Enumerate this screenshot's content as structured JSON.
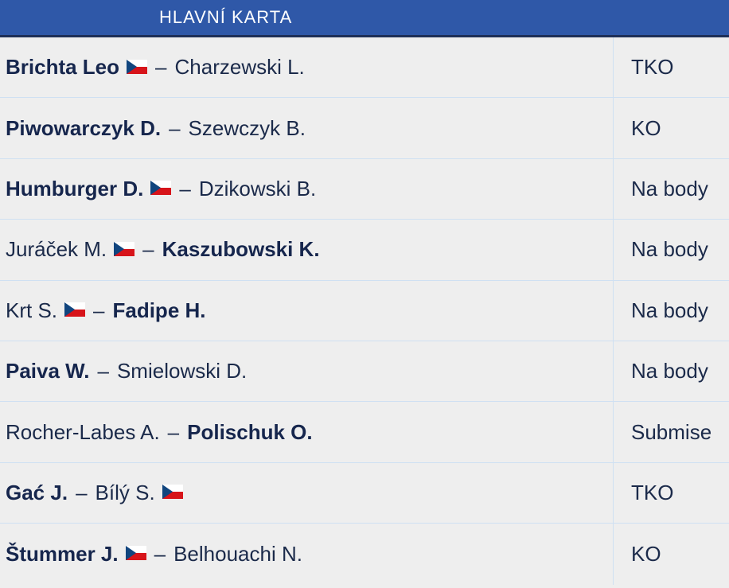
{
  "header": {
    "title": "HLAVNÍ KARTA"
  },
  "colors": {
    "header_bg": "#2f58a8",
    "row_bg": "#eeeeee",
    "divider": "#cfe0f2",
    "text": "#1b2a4a"
  },
  "fights": [
    {
      "fighter1": "Brichta Leo",
      "fighter1_winner": true,
      "fighter1_flag": "cz-flag-icon",
      "fighter2": "Charzewski L.",
      "fighter2_winner": false,
      "fighter2_flag": null,
      "separator": "–",
      "result": "TKO"
    },
    {
      "fighter1": "Piwowarczyk D.",
      "fighter1_winner": true,
      "fighter1_flag": null,
      "fighter2": "Szewczyk B.",
      "fighter2_winner": false,
      "fighter2_flag": null,
      "separator": "–",
      "result": "KO"
    },
    {
      "fighter1": "Humburger D.",
      "fighter1_winner": true,
      "fighter1_flag": "cz-flag-icon",
      "fighter2": "Dzikowski B.",
      "fighter2_winner": false,
      "fighter2_flag": null,
      "separator": "–",
      "result": "Na body"
    },
    {
      "fighter1": "Juráček M.",
      "fighter1_winner": false,
      "fighter1_flag": "cz-flag-icon",
      "fighter2": "Kaszubowski K.",
      "fighter2_winner": true,
      "fighter2_flag": null,
      "separator": "–",
      "result": "Na body"
    },
    {
      "fighter1": "Krt S.",
      "fighter1_winner": false,
      "fighter1_flag": "cz-flag-icon",
      "fighter2": "Fadipe H.",
      "fighter2_winner": true,
      "fighter2_flag": null,
      "separator": "–",
      "result": "Na body"
    },
    {
      "fighter1": "Paiva W.",
      "fighter1_winner": true,
      "fighter1_flag": null,
      "fighter2": "Smielowski D.",
      "fighter2_winner": false,
      "fighter2_flag": null,
      "separator": "–",
      "result": "Na body"
    },
    {
      "fighter1": "Rocher-Labes A.",
      "fighter1_winner": false,
      "fighter1_flag": null,
      "fighter2": "Polischuk O.",
      "fighter2_winner": true,
      "fighter2_flag": null,
      "separator": "–",
      "result": "Submise"
    },
    {
      "fighter1": "Gać J.",
      "fighter1_winner": true,
      "fighter1_flag": null,
      "fighter2": "Bílý S.",
      "fighter2_winner": false,
      "fighter2_flag": "cz-flag-icon",
      "separator": "–",
      "result": "TKO"
    },
    {
      "fighter1": "Štummer J.",
      "fighter1_winner": true,
      "fighter1_flag": "cz-flag-icon",
      "fighter2": "Belhouachi N.",
      "fighter2_winner": false,
      "fighter2_flag": null,
      "separator": "–",
      "result": "KO"
    }
  ]
}
